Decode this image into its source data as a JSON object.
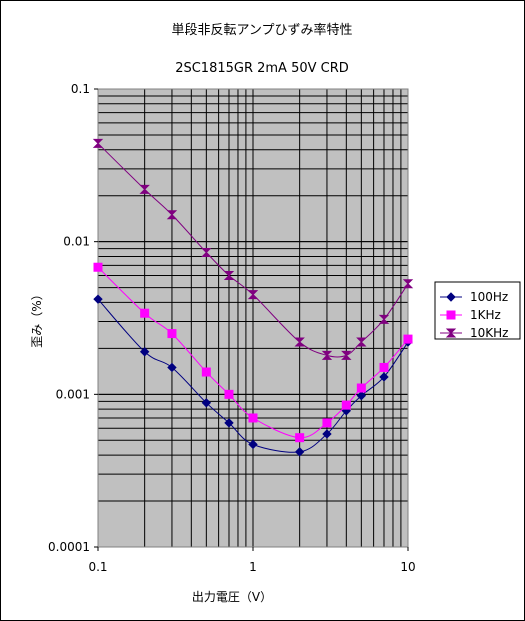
{
  "chart_data": {
    "type": "line",
    "title": "単段非反転アンプひずみ率特性",
    "subtitle": "2SC1815GR 2mA 50V CRD",
    "xlabel": "出力電圧（V）",
    "ylabel": "歪み（%）",
    "x_scale": "log",
    "y_scale": "log",
    "xlim": [
      0.1,
      10
    ],
    "ylim": [
      0.0001,
      0.1
    ],
    "x_ticks": [
      "0.1",
      "1",
      "10"
    ],
    "y_ticks": [
      "0.1",
      "0.01",
      "0.001",
      "0.0001"
    ],
    "grid": true,
    "legend_position": "right",
    "series": [
      {
        "name": "100Hz",
        "color": "#000080",
        "marker": "diamond",
        "x": [
          0.1,
          0.2,
          0.3,
          0.5,
          0.7,
          1,
          2,
          3,
          4,
          5,
          7,
          10
        ],
        "y": [
          0.0042,
          0.0019,
          0.0015,
          0.00088,
          0.00065,
          0.00047,
          0.00042,
          0.00055,
          0.00078,
          0.00098,
          0.0013,
          0.0022
        ]
      },
      {
        "name": "1KHz",
        "color": "#ff00ff",
        "marker": "square",
        "x": [
          0.1,
          0.2,
          0.3,
          0.5,
          0.7,
          1,
          2,
          3,
          4,
          5,
          7,
          10
        ],
        "y": [
          0.0068,
          0.0034,
          0.0025,
          0.0014,
          0.001,
          0.0007,
          0.00052,
          0.00065,
          0.00085,
          0.0011,
          0.0015,
          0.0023
        ]
      },
      {
        "name": "10KHz",
        "color": "#800080",
        "marker": "hourglass",
        "x": [
          0.1,
          0.2,
          0.3,
          0.5,
          0.7,
          1,
          2,
          3,
          4,
          5,
          7,
          10
        ],
        "y": [
          0.044,
          0.022,
          0.015,
          0.0085,
          0.006,
          0.0045,
          0.0022,
          0.0018,
          0.0018,
          0.0022,
          0.0031,
          0.0053
        ]
      }
    ]
  }
}
